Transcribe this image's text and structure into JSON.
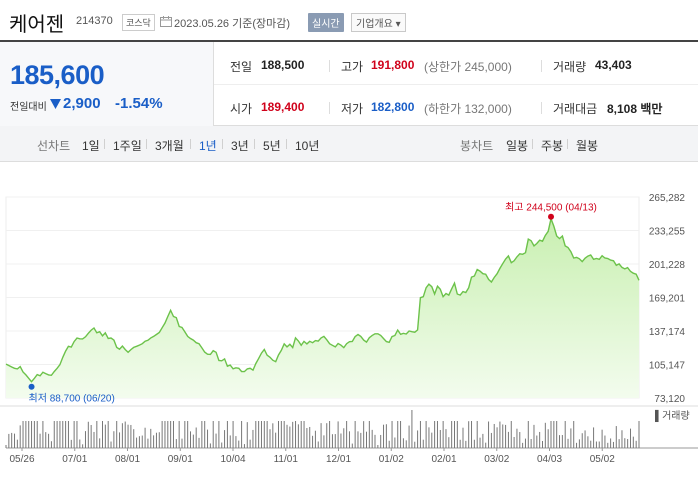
{
  "header": {
    "stock_name": "케어젠",
    "stock_code": "214370",
    "market": "코스닥",
    "date_text": "2023.05.26 기준(장마감)",
    "realtime_label": "실시간",
    "overview_label": "기업개요 ▾"
  },
  "quote": {
    "current_price": "185,600",
    "change_label": "전일대비",
    "change_value": "2,900",
    "change_pct": "-1.54%",
    "prev_close_label": "전일",
    "prev_close": "188,500",
    "high_label": "고가",
    "high": "191,800",
    "upper_limit": "(상한가 245,000)",
    "volume_label": "거래량",
    "volume": "43,403",
    "open_label": "시가",
    "open": "189,400",
    "low_label": "저가",
    "low": "182,800",
    "lower_limit": "(하한가 132,000)",
    "trade_value_label": "거래대금",
    "trade_value": "8,108 백만"
  },
  "tabs": {
    "line_chart_label": "선차트",
    "line_periods": [
      "1일",
      "1주일",
      "3개월",
      "1년",
      "3년",
      "5년",
      "10년"
    ],
    "active_period": "1년",
    "candle_chart_label": "봉차트",
    "candle_periods": [
      "일봉",
      "주봉",
      "월봉"
    ]
  },
  "colors": {
    "price_down": "#1a5ec7",
    "price_up": "#d0021b",
    "line": "#6cc24a",
    "volume_bar": "#777777"
  },
  "chart_data": {
    "type": "area",
    "x_ticks": [
      "05/26",
      "07/01",
      "08/01",
      "09/01",
      "10/04",
      "11/01",
      "12/01",
      "01/02",
      "02/01",
      "03/02",
      "04/03",
      "05/02"
    ],
    "ylim": [
      73120,
      265282
    ],
    "y_ticks": [
      "265,282",
      "233,255",
      "201,228",
      "169,201",
      "137,174",
      "105,147",
      "73,120"
    ],
    "volume_label": "▌거래량",
    "max_annotation": "최고 244,500 (04/13)",
    "min_annotation": "최저 88,700 (06/20)",
    "max_point": {
      "date": "04/13",
      "value": 244500
    },
    "min_point": {
      "date": "06/20",
      "value": 88700
    },
    "series": [
      {
        "values": [
          105500,
          104200,
          102800,
          101500,
          100900,
          103100,
          98000,
          95200,
          92000,
          88700,
          92000,
          95500,
          94300,
          97800,
          96400,
          95200,
          94800,
          98500,
          101500,
          105000,
          112000,
          118000,
          122500,
          121800,
          127000,
          130500,
          129700,
          129600,
          131600,
          135000,
          138000,
          140000,
          135500,
          136500,
          132500,
          135500,
          130000,
          130500,
          128500,
          121500,
          119800,
          122700,
          119500,
          116800,
          119400,
          121500,
          122500,
          123700,
          125000,
          127400,
          128300,
          130600,
          132000,
          133800,
          135700,
          140200,
          144800,
          151000,
          157000,
          151000,
          150000,
          141500,
          140500,
          136500,
          132000,
          130000,
          128500,
          126000,
          125000,
          121000,
          117000,
          115000,
          114800,
          118300,
          116800,
          109000,
          108700,
          110500,
          103500,
          104600,
          101000,
          102000,
          101500,
          98500,
          98400,
          100900,
          101500,
          99800,
          106000,
          110800,
          116000,
          119500,
          114000,
          112000,
          109300,
          107800,
          114200,
          118600,
          124800,
          122000,
          124500,
          121300,
          130600,
          127600,
          123500,
          127200,
          124800,
          127300,
          126000,
          128000,
          127500,
          130600,
          132000,
          128800,
          125000,
          123500,
          122000,
          125200,
          123600,
          121300,
          125000,
          126900,
          127100,
          131800,
          133800,
          132000,
          128500,
          126600,
          130800,
          133000,
          134500,
          134500,
          133000,
          130000,
          127000,
          126400,
          131800,
          132900,
          138000,
          134000,
          135000,
          134300,
          137200,
          136500,
          136000,
          138200,
          169000,
          170000,
          178500,
          182000,
          179500,
          172500,
          180000,
          177000,
          170000,
          173000,
          171500,
          177500,
          183000,
          172500,
          171500,
          174800,
          174000,
          178600,
          188700,
          189800,
          196000,
          194400,
          192000,
          191500,
          186500,
          184000,
          188300,
          192000,
          197000,
          201500,
          206000,
          209000,
          202500,
          204300,
          208000,
          211000,
          210500,
          212000,
          225000,
          223500,
          218500,
          220800,
          224000,
          223000,
          228500,
          232500,
          244500,
          237500,
          228000,
          225500,
          228000,
          218500,
          217000,
          213000,
          207000,
          207500,
          206200,
          203500,
          206800,
          208800,
          209800,
          205700,
          206500,
          205700,
          209200,
          207000,
          206500,
          205000,
          204300,
          200000,
          201300,
          198000,
          196500,
          197800,
          194200,
          192400,
          191500,
          185600
        ]
      }
    ]
  }
}
